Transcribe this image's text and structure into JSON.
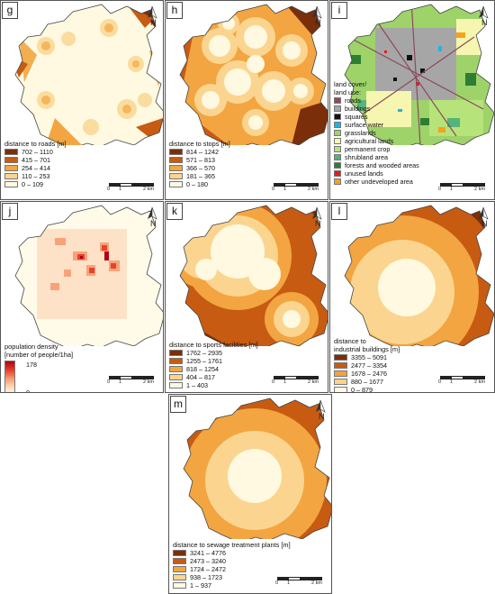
{
  "north_label": "N",
  "scale": {
    "t0": "0",
    "t1": "1",
    "t2": "2 km"
  },
  "panels": {
    "g": {
      "label": "g",
      "title": "distance to roads [m]",
      "classes": [
        "702 – 1110",
        "415 – 701",
        "254 – 414",
        "110 – 253",
        "0 – 109"
      ],
      "colors": [
        "#7b2e0a",
        "#c75b12",
        "#f2a541",
        "#fbd58f",
        "#fef9e0"
      ]
    },
    "h": {
      "label": "h",
      "title": "distance to stops [m]",
      "classes": [
        "814 – 1242",
        "571 – 813",
        "366 – 570",
        "181 – 365",
        "0 – 180"
      ],
      "colors": [
        "#7b2e0a",
        "#c75b12",
        "#f2a541",
        "#fbd58f",
        "#fef9e0"
      ]
    },
    "i": {
      "label": "i",
      "title_line1": "land cover/",
      "title_line2": "land use:",
      "classes": [
        "roads",
        "buildings",
        "squares",
        "surface water",
        "grasslands",
        "agricultural lands",
        "permanent crop",
        "shrubland area",
        "forests and wooded areas",
        "unused lands",
        "other undeveloped area"
      ],
      "colors": [
        "#8c4a5c",
        "#a6a6a6",
        "#111111",
        "#1fb4e6",
        "#9ed36a",
        "#f6f6b0",
        "#b6e37a",
        "#56b47a",
        "#2e7d32",
        "#e51c1c",
        "#f6a21b"
      ]
    },
    "j": {
      "label": "j",
      "title_line1": "population density",
      "title_line2": "[number of people/1ha]",
      "max": "178",
      "min": "0"
    },
    "k": {
      "label": "k",
      "title": "distance to sports facilities [m]",
      "classes": [
        "1762 – 2935",
        "1255 – 1761",
        "818 – 1254",
        "404 – 817",
        "1 – 403"
      ],
      "colors": [
        "#7b2e0a",
        "#c75b12",
        "#f2a541",
        "#fbd58f",
        "#fef9e0"
      ]
    },
    "l": {
      "label": "l",
      "title_line1": "distance to",
      "title_line2": "industrial buildings [m]",
      "classes": [
        "3355 – 5091",
        "2477 – 3354",
        "1678 – 2476",
        "880 – 1677",
        "0 – 879"
      ],
      "colors": [
        "#7b2e0a",
        "#c75b12",
        "#f2a541",
        "#fbd58f",
        "#fef9e0"
      ]
    },
    "m": {
      "label": "m",
      "title": "distance to sewage treatment plants [m]",
      "classes": [
        "3241 – 4776",
        "2473 – 3240",
        "1724 – 2472",
        "938 – 1723",
        "1 – 937"
      ],
      "colors": [
        "#7b2e0a",
        "#c75b12",
        "#f2a541",
        "#fbd58f",
        "#fef9e0"
      ]
    }
  }
}
